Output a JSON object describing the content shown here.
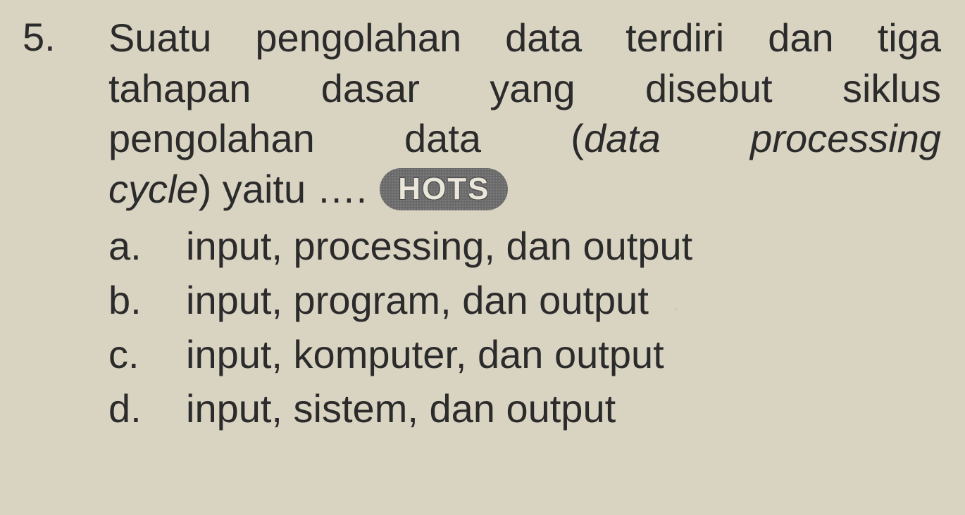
{
  "question": {
    "number": "5.",
    "stem_lines": [
      "Suatu pengolahan data terdiri dan tiga",
      "tahapan dasar yang disebut siklus"
    ],
    "stem_line3_pre": "pengolahan data (",
    "stem_line3_italic": "data processing",
    "stem_line4_italic": "cycle",
    "stem_line4_post": ") yaitu ….",
    "badge": "HOTS",
    "options": [
      {
        "letter": "a.",
        "text": "input, processing, dan output"
      },
      {
        "letter": "b.",
        "text": "input, program, dan output"
      },
      {
        "letter": "c.",
        "text": "input, komputer, dan output"
      },
      {
        "letter": "d.",
        "text": "input, sistem, dan output"
      }
    ]
  },
  "style": {
    "background": "#d9d3c2",
    "text_color": "#2b2b2b",
    "font_size_pt": 42,
    "badge_bg": "#6f6f6f",
    "badge_fg": "#eae6da"
  }
}
